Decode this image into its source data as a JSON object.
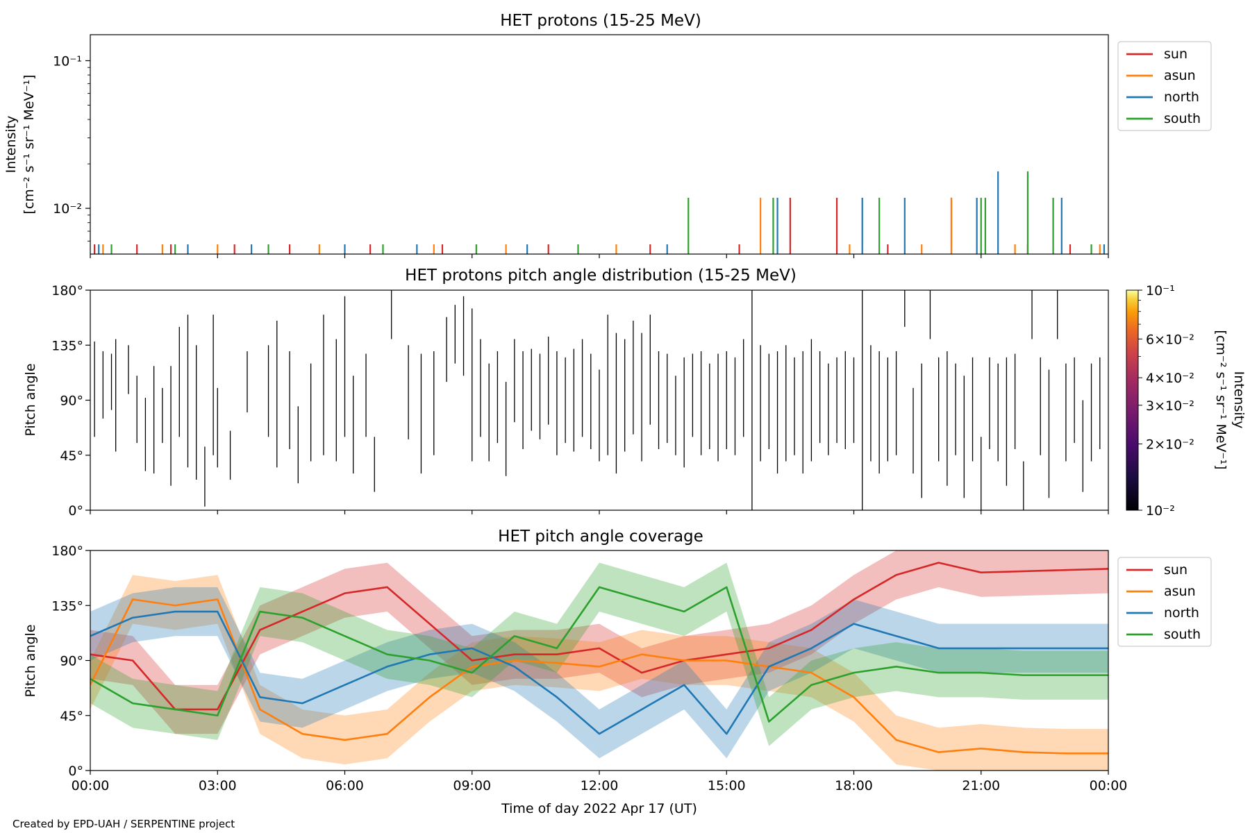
{
  "figure": {
    "credit": "Created by EPD-UAH / SERPENTINE project",
    "xlabel": "Time of day 2022 Apr 17 (UT)",
    "time_ticks": [
      "00:00",
      "03:00",
      "06:00",
      "09:00",
      "12:00",
      "15:00",
      "18:00",
      "21:00",
      "00:00"
    ]
  },
  "chart_data": [
    {
      "type": "line",
      "title": "HET protons (15-25 MeV)",
      "ylabel_line1": "Intensity",
      "ylabel_line2": "[cm⁻² s⁻¹ sr⁻¹ MeV⁻¹]",
      "yscale": "log",
      "ylim": [
        0.0049,
        0.15
      ],
      "xlim_hours": [
        0,
        24
      ],
      "y_ticks": [
        "10⁻²",
        "10⁻¹"
      ],
      "legend": {
        "placement": "upper-right-outside",
        "entries": [
          "sun",
          "asun",
          "north",
          "south"
        ]
      },
      "baseline_intensity": 0.0057,
      "series": [
        {
          "name": "sun",
          "color": "#d62728",
          "spikes": [
            [
              0.1,
              0.0057
            ],
            [
              1.1,
              0.0057
            ],
            [
              1.9,
              0.0057
            ],
            [
              3.4,
              0.0057
            ],
            [
              4.7,
              0.0057
            ],
            [
              6.6,
              0.0057
            ],
            [
              8.3,
              0.0057
            ],
            [
              10.8,
              0.0057
            ],
            [
              13.2,
              0.0057
            ],
            [
              15.3,
              0.0057
            ],
            [
              16.5,
              0.0118
            ],
            [
              17.6,
              0.0118
            ],
            [
              18.8,
              0.0057
            ],
            [
              20.3,
              0.0118
            ],
            [
              22.1,
              0.0057
            ],
            [
              23.1,
              0.0057
            ]
          ]
        },
        {
          "name": "asun",
          "color": "#ff7f0e",
          "spikes": [
            [
              0.3,
              0.0057
            ],
            [
              1.7,
              0.0057
            ],
            [
              3.0,
              0.0057
            ],
            [
              5.4,
              0.0057
            ],
            [
              8.1,
              0.0057
            ],
            [
              9.8,
              0.0057
            ],
            [
              12.4,
              0.0057
            ],
            [
              15.8,
              0.0118
            ],
            [
              17.9,
              0.0057
            ],
            [
              19.6,
              0.0057
            ],
            [
              20.3,
              0.0118
            ],
            [
              21.8,
              0.0057
            ],
            [
              23.8,
              0.0057
            ]
          ]
        },
        {
          "name": "north",
          "color": "#1f77b4",
          "spikes": [
            [
              0.2,
              0.0057
            ],
            [
              2.3,
              0.0057
            ],
            [
              3.8,
              0.0057
            ],
            [
              6.0,
              0.0057
            ],
            [
              7.7,
              0.0057
            ],
            [
              10.3,
              0.0057
            ],
            [
              13.6,
              0.0057
            ],
            [
              16.2,
              0.0118
            ],
            [
              18.2,
              0.0118
            ],
            [
              19.2,
              0.0118
            ],
            [
              20.9,
              0.0118
            ],
            [
              21.4,
              0.0178
            ],
            [
              22.9,
              0.0118
            ],
            [
              23.9,
              0.0057
            ]
          ]
        },
        {
          "name": "south",
          "color": "#2ca02c",
          "spikes": [
            [
              0.5,
              0.0057
            ],
            [
              2.0,
              0.0057
            ],
            [
              4.2,
              0.0057
            ],
            [
              6.9,
              0.0057
            ],
            [
              9.1,
              0.0057
            ],
            [
              11.5,
              0.0057
            ],
            [
              14.1,
              0.0118
            ],
            [
              16.1,
              0.0118
            ],
            [
              18.6,
              0.0118
            ],
            [
              21.0,
              0.0118
            ],
            [
              21.1,
              0.0118
            ],
            [
              22.1,
              0.0178
            ],
            [
              22.7,
              0.0118
            ],
            [
              23.6,
              0.0057
            ]
          ]
        }
      ]
    },
    {
      "type": "heatmap",
      "title": "HET protons pitch angle distribution (15-25 MeV)",
      "ylabel": "Pitch angle",
      "ylim": [
        0,
        180
      ],
      "xlim_hours": [
        0,
        24
      ],
      "y_ticks": [
        "0°",
        "45°",
        "90°",
        "135°",
        "180°"
      ],
      "colorbar": {
        "label_line1": "Intensity",
        "label_line2": "[cm⁻² s⁻¹ sr⁻¹ MeV⁻¹]",
        "colormap": "inferno",
        "range": [
          0.01,
          0.1
        ],
        "ticks": [
          "10⁻²",
          "2×10⁻²",
          "3×10⁻²",
          "4×10⁻²",
          "6×10⁻²",
          "10⁻¹"
        ]
      },
      "cell_color": "#000000",
      "note": "Sparse narrow black cells; each entry is a time (h) with a pitch-angle span [low, high] in degrees",
      "cells": [
        [
          0.1,
          60,
          138
        ],
        [
          0.3,
          75,
          130
        ],
        [
          0.5,
          82,
          128
        ],
        [
          0.6,
          48,
          140
        ],
        [
          0.9,
          95,
          135
        ],
        [
          1.1,
          55,
          110
        ],
        [
          1.3,
          32,
          92
        ],
        [
          1.5,
          30,
          118
        ],
        [
          1.7,
          55,
          100
        ],
        [
          1.9,
          20,
          118
        ],
        [
          2.1,
          60,
          150
        ],
        [
          2.3,
          35,
          160
        ],
        [
          2.5,
          25,
          135
        ],
        [
          2.7,
          3,
          52
        ],
        [
          2.9,
          45,
          160
        ],
        [
          3.0,
          35,
          100
        ],
        [
          3.3,
          25,
          65
        ],
        [
          3.7,
          80,
          130
        ],
        [
          4.2,
          60,
          135
        ],
        [
          4.4,
          35,
          155
        ],
        [
          4.7,
          50,
          130
        ],
        [
          4.9,
          22,
          85
        ],
        [
          5.2,
          40,
          120
        ],
        [
          5.5,
          45,
          160
        ],
        [
          5.8,
          40,
          140
        ],
        [
          6.0,
          60,
          175
        ],
        [
          6.2,
          30,
          110
        ],
        [
          6.5,
          60,
          128
        ],
        [
          6.7,
          15,
          60
        ],
        [
          7.1,
          140,
          180
        ],
        [
          7.5,
          58,
          135
        ],
        [
          7.8,
          30,
          128
        ],
        [
          8.1,
          45,
          130
        ],
        [
          8.4,
          105,
          158
        ],
        [
          8.6,
          120,
          168
        ],
        [
          8.8,
          110,
          175
        ],
        [
          9.0,
          40,
          165
        ],
        [
          9.2,
          60,
          140
        ],
        [
          9.4,
          40,
          120
        ],
        [
          9.6,
          55,
          130
        ],
        [
          9.8,
          28,
          105
        ],
        [
          10.0,
          72,
          140
        ],
        [
          10.2,
          50,
          130
        ],
        [
          10.4,
          65,
          132
        ],
        [
          10.6,
          58,
          128
        ],
        [
          10.8,
          70,
          142
        ],
        [
          11.0,
          45,
          130
        ],
        [
          11.2,
          55,
          125
        ],
        [
          11.4,
          48,
          132
        ],
        [
          11.6,
          60,
          140
        ],
        [
          11.8,
          50,
          128
        ],
        [
          12.0,
          40,
          115
        ],
        [
          12.2,
          45,
          160
        ],
        [
          12.4,
          30,
          145
        ],
        [
          12.6,
          48,
          140
        ],
        [
          12.8,
          62,
          155
        ],
        [
          13.0,
          40,
          145
        ],
        [
          13.2,
          70,
          160
        ],
        [
          13.4,
          50,
          130
        ],
        [
          13.6,
          55,
          128
        ],
        [
          13.8,
          45,
          110
        ],
        [
          14.0,
          35,
          125
        ],
        [
          14.2,
          60,
          128
        ],
        [
          14.4,
          45,
          130
        ],
        [
          14.6,
          50,
          120
        ],
        [
          14.8,
          40,
          128
        ],
        [
          15.0,
          50,
          130
        ],
        [
          15.2,
          45,
          125
        ],
        [
          15.4,
          60,
          140
        ],
        [
          15.6,
          0,
          180
        ],
        [
          15.8,
          40,
          135
        ],
        [
          16.0,
          50,
          128
        ],
        [
          16.2,
          30,
          130
        ],
        [
          16.4,
          40,
          135
        ],
        [
          16.6,
          45,
          125
        ],
        [
          16.8,
          30,
          130
        ],
        [
          17.0,
          40,
          140
        ],
        [
          17.2,
          55,
          130
        ],
        [
          17.4,
          45,
          120
        ],
        [
          17.6,
          55,
          125
        ],
        [
          17.8,
          50,
          130
        ],
        [
          18.0,
          55,
          125
        ],
        [
          18.2,
          0,
          180
        ],
        [
          18.4,
          40,
          135
        ],
        [
          18.6,
          30,
          130
        ],
        [
          18.8,
          40,
          125
        ],
        [
          19.0,
          45,
          130
        ],
        [
          19.2,
          150,
          180
        ],
        [
          19.4,
          30,
          100
        ],
        [
          19.6,
          10,
          120
        ],
        [
          19.8,
          140,
          180
        ],
        [
          20.0,
          40,
          125
        ],
        [
          20.2,
          20,
          130
        ],
        [
          20.4,
          45,
          120
        ],
        [
          20.6,
          10,
          110
        ],
        [
          20.8,
          40,
          125
        ],
        [
          21.0,
          0,
          60
        ],
        [
          21.2,
          50,
          125
        ],
        [
          21.4,
          40,
          120
        ],
        [
          21.6,
          20,
          125
        ],
        [
          21.8,
          50,
          128
        ],
        [
          22.0,
          0,
          40
        ],
        [
          22.2,
          140,
          180
        ],
        [
          22.4,
          45,
          125
        ],
        [
          22.6,
          10,
          115
        ],
        [
          22.8,
          140,
          180
        ],
        [
          23.0,
          40,
          120
        ],
        [
          23.2,
          55,
          125
        ],
        [
          23.4,
          15,
          90
        ],
        [
          23.6,
          40,
          120
        ],
        [
          23.8,
          50,
          125
        ]
      ]
    },
    {
      "type": "line",
      "title": "HET pitch angle coverage",
      "ylabel": "Pitch angle",
      "ylim": [
        0,
        180
      ],
      "xlim_hours": [
        0,
        24
      ],
      "y_ticks": [
        "0°",
        "45°",
        "90°",
        "135°",
        "180°"
      ],
      "legend": {
        "placement": "upper-right-outside",
        "entries": [
          "sun",
          "asun",
          "north",
          "south"
        ]
      },
      "band_halfwidth_deg": 20,
      "x": [
        0,
        1,
        2,
        3,
        4,
        5,
        6,
        7,
        8,
        9,
        10,
        11,
        12,
        13,
        14,
        15,
        16,
        17,
        18,
        19,
        20,
        21,
        22,
        23,
        24
      ],
      "series": [
        {
          "name": "sun",
          "color": "#d62728",
          "values": [
            95,
            90,
            50,
            50,
            115,
            130,
            145,
            150,
            120,
            90,
            95,
            95,
            100,
            80,
            90,
            95,
            100,
            115,
            140,
            160,
            170,
            162,
            163,
            164,
            165
          ]
        },
        {
          "name": "asun",
          "color": "#ff7f0e",
          "values": [
            70,
            140,
            135,
            140,
            50,
            30,
            25,
            30,
            60,
            85,
            90,
            88,
            85,
            95,
            90,
            90,
            85,
            80,
            60,
            25,
            15,
            18,
            15,
            14,
            14
          ]
        },
        {
          "name": "north",
          "color": "#1f77b4",
          "values": [
            110,
            125,
            130,
            130,
            60,
            55,
            70,
            85,
            95,
            100,
            85,
            60,
            30,
            50,
            70,
            30,
            85,
            100,
            120,
            110,
            100,
            100,
            100,
            100,
            100
          ]
        },
        {
          "name": "south",
          "color": "#2ca02c",
          "values": [
            75,
            55,
            50,
            45,
            130,
            125,
            110,
            95,
            90,
            80,
            110,
            100,
            150,
            140,
            130,
            150,
            40,
            70,
            80,
            85,
            80,
            80,
            78,
            78,
            78
          ]
        }
      ]
    }
  ]
}
